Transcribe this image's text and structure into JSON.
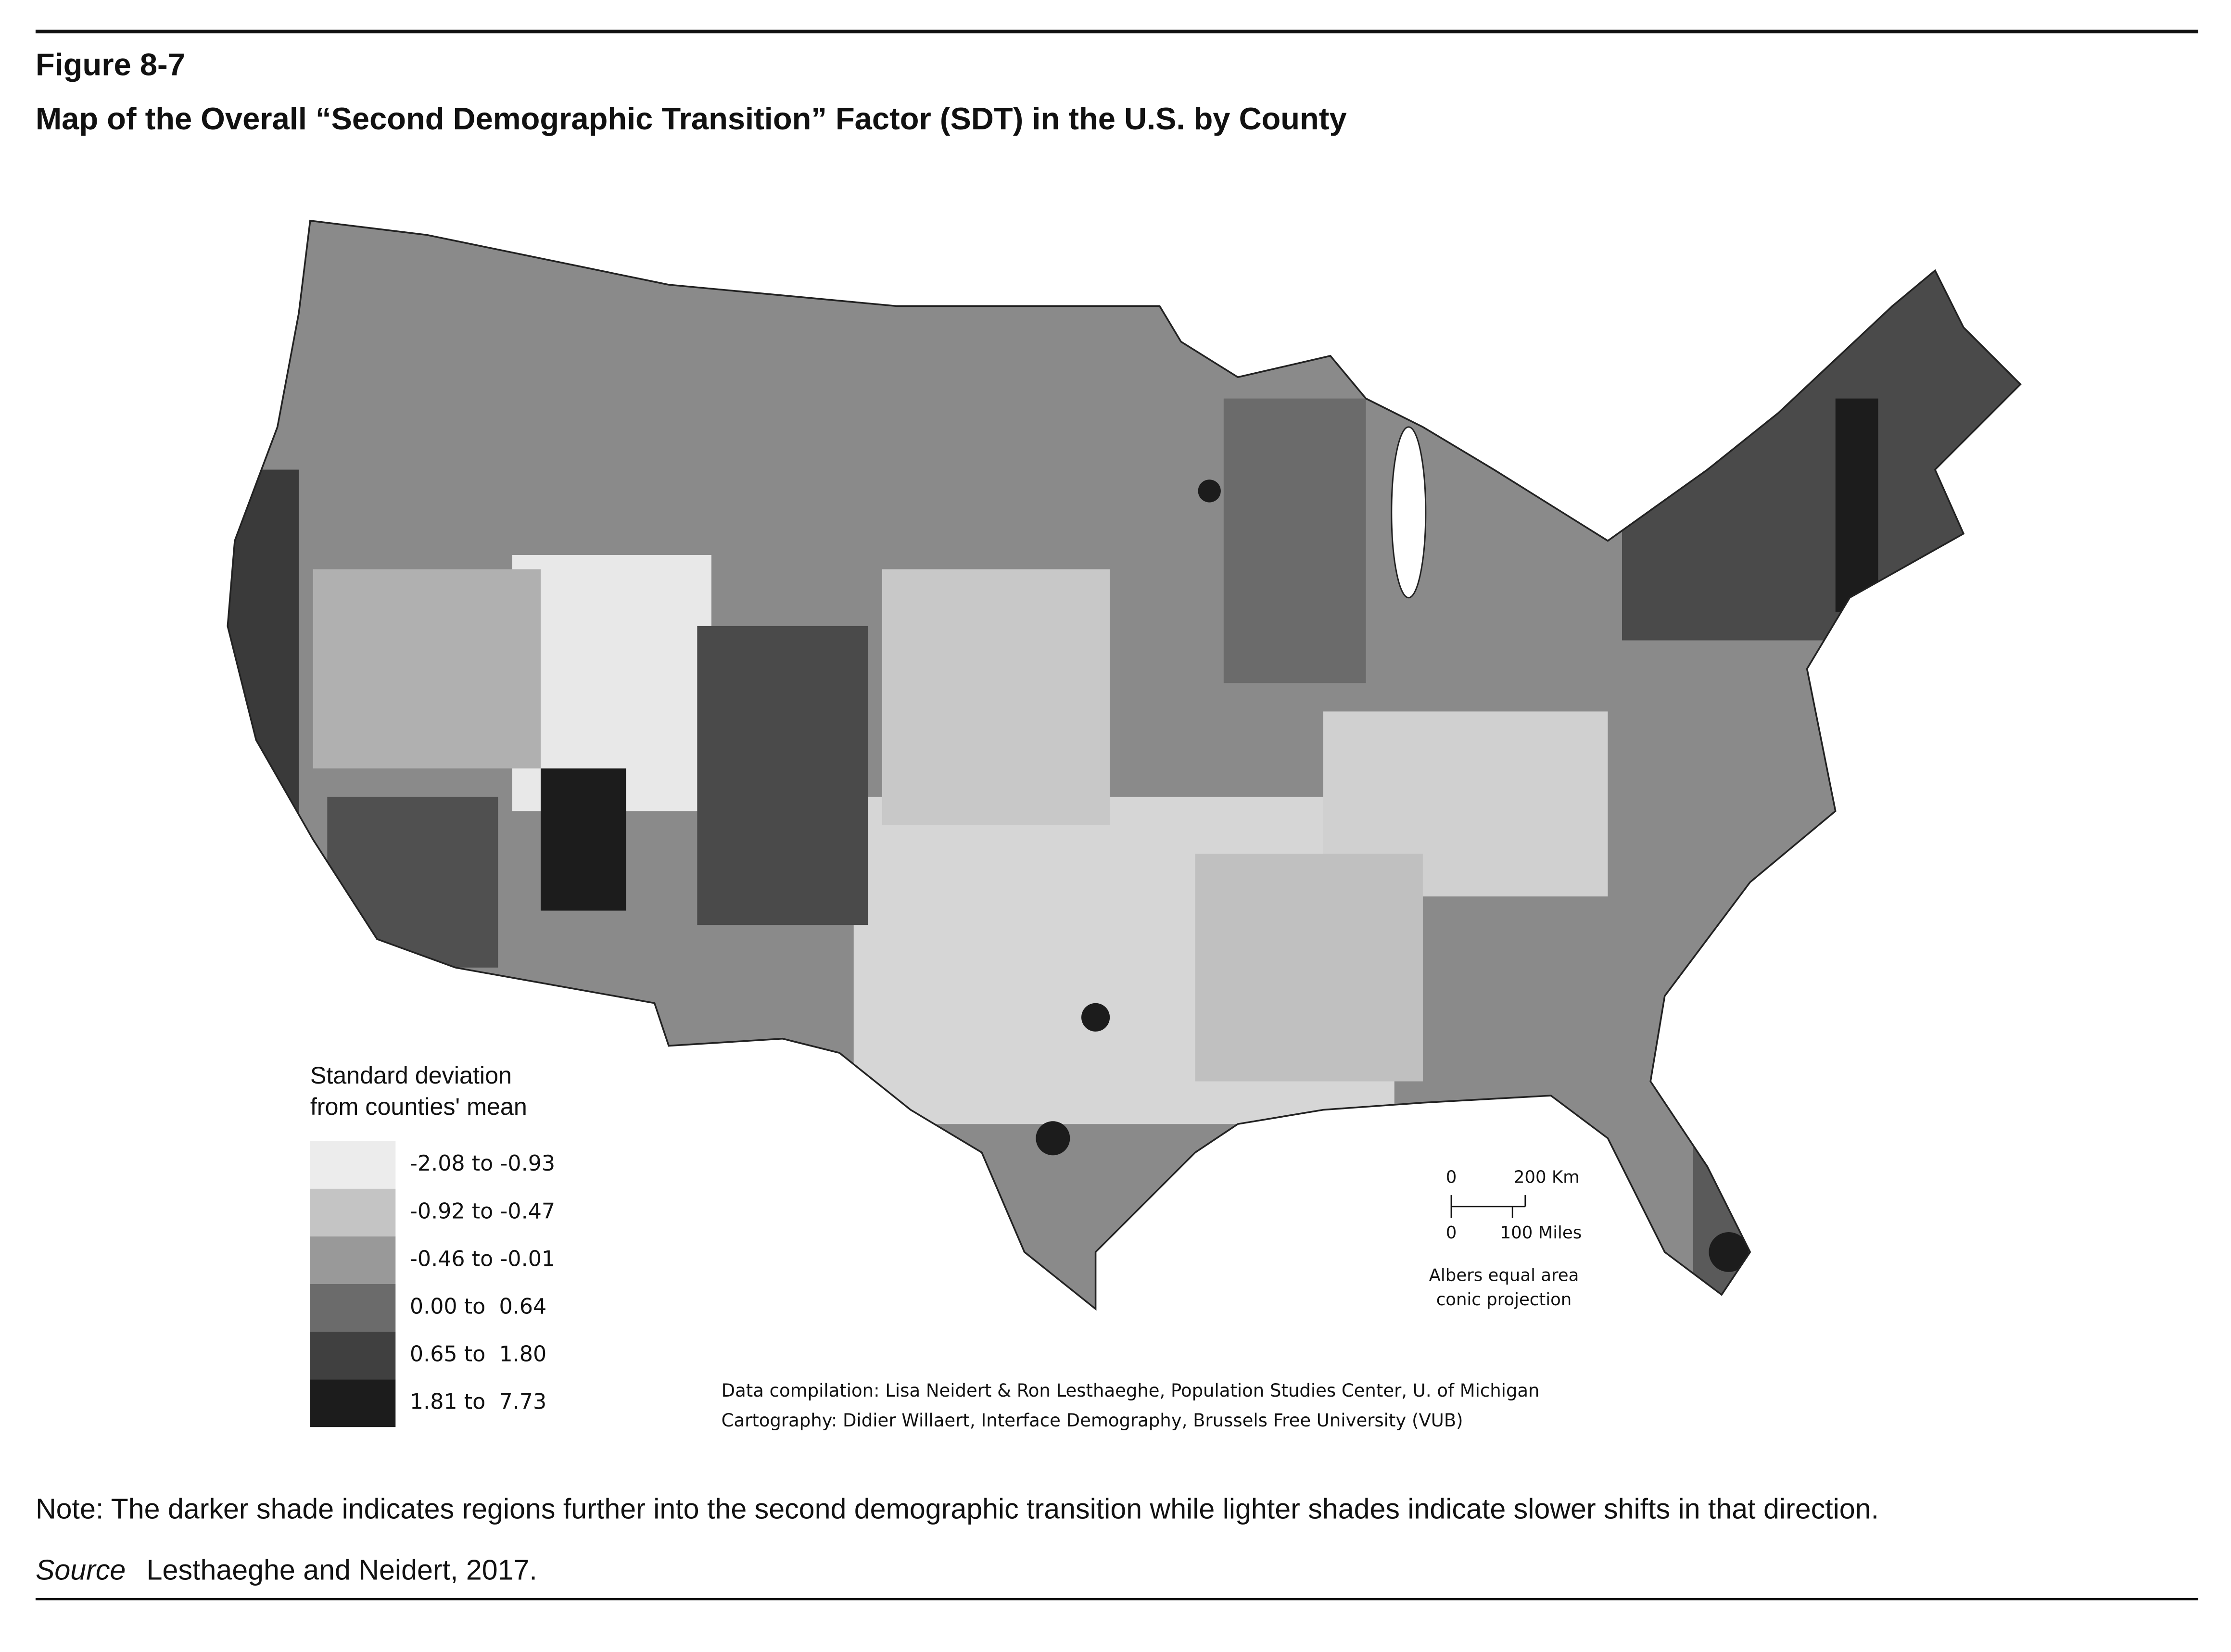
{
  "header": {
    "figure": "Figure 8-7",
    "title": "Map of the Overall “Second Demographic Transition” Factor (SDT) in the U.S. by County"
  },
  "legend": {
    "title_lines": [
      "Standard deviation",
      "from counties' mean"
    ],
    "items": [
      {
        "label": "-2.08 to -0.93",
        "color": "#ececec"
      },
      {
        "label": "-0.92 to -0.47",
        "color": "#c4c4c4"
      },
      {
        "label": "-0.46 to -0.01",
        "color": "#999999"
      },
      {
        "label": "0.00 to  0.64",
        "color": "#6b6b6b"
      },
      {
        "label": "0.65 to  1.80",
        "color": "#404040"
      },
      {
        "label": "1.81 to  7.73",
        "color": "#1c1c1c"
      }
    ]
  },
  "scale_bar": {
    "km_zero": "0",
    "km_label": "200 Km",
    "mi_zero": "0",
    "mi_label": "100 Miles",
    "projection_lines": [
      "Albers equal area",
      "conic projection"
    ]
  },
  "credits": [
    "Data compilation: Lisa Neidert & Ron Lesthaeghe, Population Studies Center, U. of Michigan",
    "Cartography: Didier Willaert, Interface Demography, Brussels Free University (VUB)"
  ],
  "footer": {
    "note": "Note: The darker shade indicates regions further into the second demographic transition while lighter shades indicate slower shifts in that direction.",
    "source_label": "Source",
    "source_text": "Lesthaeghe and Neidert, 2017."
  }
}
